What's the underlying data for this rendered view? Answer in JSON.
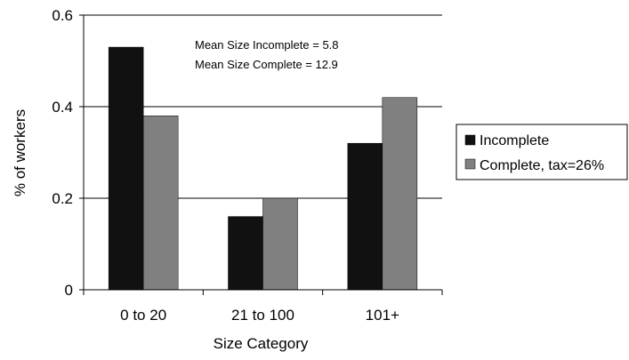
{
  "chart_data": {
    "type": "bar",
    "xlabel": "Size Category",
    "ylabel": "% of workers",
    "ylim": [
      0,
      0.6
    ],
    "yticks": [
      "0",
      "0.2",
      "0.4",
      "0.6"
    ],
    "grid": true,
    "legend_position": "right",
    "categories": [
      "0 to 20",
      "21 to 100",
      "101+"
    ],
    "series": [
      {
        "name": "Incomplete",
        "values": [
          0.53,
          0.16,
          0.32
        ],
        "color": "#111111"
      },
      {
        "name": "Complete, tax=26%",
        "values": [
          0.38,
          0.2,
          0.42
        ],
        "color": "#808080"
      }
    ],
    "annotations": [
      "Mean Size Incomplete = 5.8",
      "Mean Size Complete = 12.9"
    ]
  }
}
